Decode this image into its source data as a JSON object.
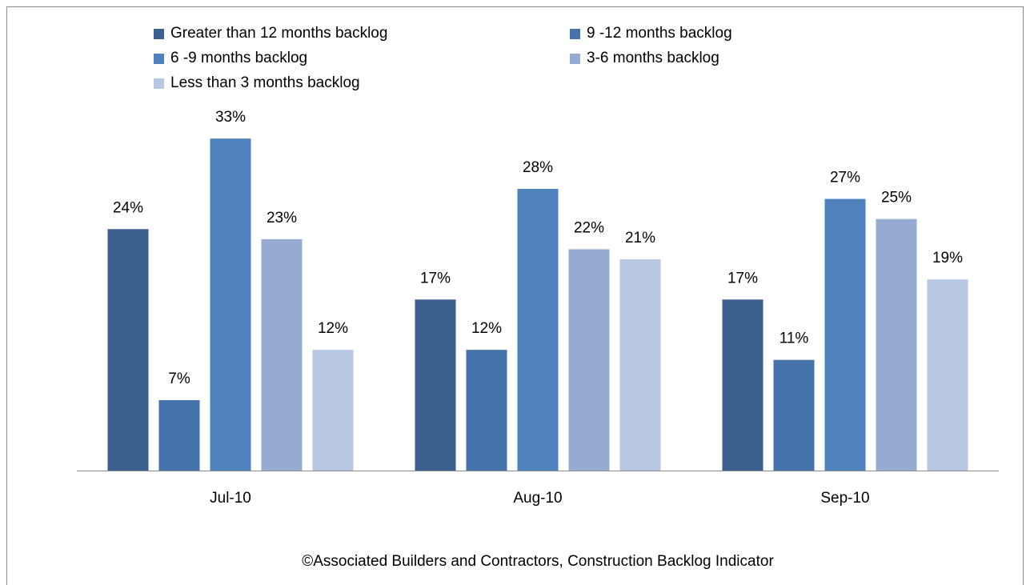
{
  "chart_data": {
    "type": "bar",
    "categories": [
      "Jul-10",
      "Aug-10",
      "Sep-10"
    ],
    "series": [
      {
        "name": "Greater than 12 months backlog",
        "color": "#3b5f8f",
        "values": [
          24,
          17,
          17
        ],
        "value_labels": [
          "24%",
          "17%",
          "17%"
        ]
      },
      {
        "name": "9 -12 months backlog",
        "color": "#4572a8",
        "values": [
          7,
          12,
          11
        ],
        "value_labels": [
          "7%",
          "12%",
          "11%"
        ]
      },
      {
        "name": "6 -9 months backlog",
        "color": "#4f81bd",
        "values": [
          33,
          28,
          27
        ],
        "value_labels": [
          "33%",
          "28%",
          "27%"
        ]
      },
      {
        "name": "3-6 months backlog",
        "color": "#95abd2",
        "values": [
          23,
          22,
          25
        ],
        "value_labels": [
          "23%",
          "22%",
          "25%"
        ]
      },
      {
        "name": "Less than 3 months backlog",
        "color": "#b9c8e2",
        "values": [
          12,
          21,
          19
        ],
        "value_labels": [
          "12%",
          "21%",
          "19%"
        ]
      }
    ],
    "ylim": [
      0,
      35
    ],
    "legend": "top",
    "footer": "©Associated Builders and Contractors, Construction Backlog Indicator"
  }
}
